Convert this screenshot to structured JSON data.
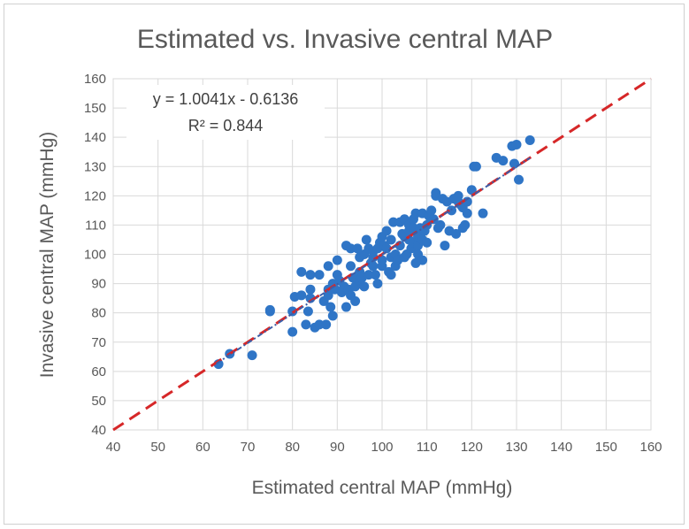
{
  "chart_data": {
    "type": "scatter",
    "title": "Estimated vs. Invasive central MAP",
    "xlabel": "Estimated central MAP (mmHg)",
    "ylabel": "Invasive central MAP (mmHg)",
    "xlim": [
      40,
      160
    ],
    "ylim": [
      40,
      160
    ],
    "xticks": [
      40,
      50,
      60,
      70,
      80,
      90,
      100,
      110,
      120,
      130,
      140,
      150,
      160
    ],
    "yticks": [
      40,
      50,
      60,
      70,
      80,
      90,
      100,
      110,
      120,
      130,
      140,
      150,
      160
    ],
    "grid": true,
    "equation": "y = 1.0041x - 0.6136",
    "r_squared": "R² = 0.844",
    "trendline": {
      "slope": 1.0041,
      "intercept": -0.6136,
      "x_range": [
        63,
        133
      ]
    },
    "identity_line": {
      "x_range": [
        40,
        160
      ]
    },
    "colors": {
      "points": "#2f75c6",
      "identity": "#d62728",
      "trend": "#3c5ea8"
    },
    "points": [
      [
        63.5,
        62.5
      ],
      [
        66,
        66
      ],
      [
        71,
        65.5
      ],
      [
        75,
        80.5
      ],
      [
        75,
        81
      ],
      [
        80,
        80.5
      ],
      [
        80,
        73.5
      ],
      [
        80.5,
        85.5
      ],
      [
        82,
        86
      ],
      [
        82,
        94
      ],
      [
        83,
        76
      ],
      [
        83.5,
        80.5
      ],
      [
        84,
        88
      ],
      [
        84,
        93
      ],
      [
        84,
        85
      ],
      [
        85,
        75
      ],
      [
        86,
        93
      ],
      [
        86,
        76
      ],
      [
        87,
        84
      ],
      [
        87.5,
        76
      ],
      [
        88,
        86
      ],
      [
        88,
        88
      ],
      [
        88,
        96
      ],
      [
        88.5,
        82
      ],
      [
        89,
        90
      ],
      [
        89,
        79
      ],
      [
        89.5,
        88
      ],
      [
        90,
        93
      ],
      [
        90,
        98
      ],
      [
        90.5,
        91
      ],
      [
        91,
        87
      ],
      [
        91.5,
        89
      ],
      [
        92,
        103
      ],
      [
        92,
        82
      ],
      [
        92.5,
        88
      ],
      [
        93,
        102
      ],
      [
        93,
        96
      ],
      [
        93,
        86
      ],
      [
        93.5,
        92
      ],
      [
        94,
        84
      ],
      [
        94,
        89
      ],
      [
        94.5,
        102
      ],
      [
        95,
        94
      ],
      [
        95,
        99
      ],
      [
        95,
        91
      ],
      [
        95.5,
        92
      ],
      [
        96,
        89
      ],
      [
        96,
        100
      ],
      [
        96.5,
        105
      ],
      [
        97,
        93
      ],
      [
        97,
        102
      ],
      [
        97.5,
        97
      ],
      [
        98,
        99
      ],
      [
        98,
        101
      ],
      [
        98,
        96
      ],
      [
        98.5,
        93
      ],
      [
        99,
        102
      ],
      [
        99,
        90
      ],
      [
        99.5,
        104
      ],
      [
        100,
        96
      ],
      [
        100,
        106
      ],
      [
        100,
        98
      ],
      [
        100.5,
        103
      ],
      [
        101,
        102
      ],
      [
        101,
        108
      ],
      [
        101.5,
        94
      ],
      [
        102,
        99
      ],
      [
        102,
        93
      ],
      [
        102,
        105
      ],
      [
        102.5,
        111
      ],
      [
        103,
        96
      ],
      [
        103,
        100
      ],
      [
        103.5,
        98
      ],
      [
        104,
        103
      ],
      [
        104,
        111
      ],
      [
        104.5,
        107
      ],
      [
        105,
        99
      ],
      [
        105,
        106
      ],
      [
        105,
        112
      ],
      [
        105.5,
        100
      ],
      [
        106,
        105
      ],
      [
        106,
        108
      ],
      [
        106,
        110
      ],
      [
        106.5,
        102
      ],
      [
        107,
        104
      ],
      [
        107,
        112
      ],
      [
        107,
        109
      ],
      [
        107.5,
        114
      ],
      [
        107.5,
        97
      ],
      [
        108,
        106
      ],
      [
        108,
        103
      ],
      [
        108,
        100
      ],
      [
        108.5,
        109
      ],
      [
        109,
        105
      ],
      [
        109,
        98
      ],
      [
        109,
        114
      ],
      [
        109.5,
        108
      ],
      [
        110,
        104
      ],
      [
        110,
        110
      ],
      [
        110.5,
        113
      ],
      [
        111,
        115
      ],
      [
        111.5,
        112
      ],
      [
        112,
        120
      ],
      [
        112,
        121
      ],
      [
        112.5,
        109
      ],
      [
        113,
        110
      ],
      [
        113.5,
        119
      ],
      [
        114,
        103
      ],
      [
        114.5,
        118
      ],
      [
        115,
        108
      ],
      [
        115.5,
        115
      ],
      [
        116,
        119
      ],
      [
        116.5,
        107
      ],
      [
        117,
        118
      ],
      [
        117,
        120
      ],
      [
        117.5,
        117
      ],
      [
        118,
        109
      ],
      [
        118,
        116
      ],
      [
        118.5,
        110
      ],
      [
        119,
        118
      ],
      [
        119,
        114
      ],
      [
        120,
        122
      ],
      [
        120.5,
        130
      ],
      [
        121,
        130
      ],
      [
        122.5,
        114
      ],
      [
        125.5,
        133
      ],
      [
        127,
        132
      ],
      [
        129,
        137
      ],
      [
        129.5,
        131
      ],
      [
        130,
        137.5
      ],
      [
        130.5,
        125.5
      ],
      [
        133,
        139
      ]
    ]
  }
}
